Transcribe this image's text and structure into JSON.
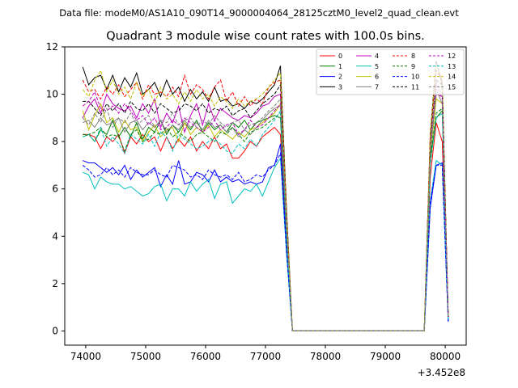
{
  "figure": {
    "suptitle": "Data file: modeM0/AS1A10_090T14_9000004064_28125cztM0_level2_quad_clean.evt",
    "title": "Quadrant 3 module wise count rates with 100.0s bins.",
    "offset_label": "+3.452e8"
  },
  "chart_data": {
    "type": "line",
    "title": "Quadrant 3 module wise count rates with 100.0s bins.",
    "xlabel": "",
    "ylabel": "",
    "x_offset": 345200000,
    "xlim": [
      73650,
      80350
    ],
    "ylim": [
      -0.6,
      12.0
    ],
    "xticks": [
      74000,
      75000,
      76000,
      77000,
      78000,
      79000,
      80000
    ],
    "yticks": [
      0,
      2,
      4,
      6,
      8,
      10,
      12
    ],
    "grid": false,
    "legend": {
      "placement": "top-right",
      "ncol": 4
    },
    "x": [
      73950,
      74050,
      74150,
      74250,
      74350,
      74450,
      74550,
      74650,
      74750,
      74850,
      74950,
      75050,
      75150,
      75250,
      75350,
      75450,
      75550,
      75650,
      75750,
      75850,
      75950,
      76050,
      76150,
      76250,
      76350,
      76450,
      76550,
      76650,
      76750,
      76850,
      76950,
      77050,
      77150,
      77250,
      77350,
      77450,
      77550,
      77650,
      77750,
      77850,
      77950,
      78050,
      78150,
      78250,
      78350,
      78450,
      78550,
      78650,
      78750,
      78850,
      78950,
      79050,
      79150,
      79250,
      79350,
      79450,
      79550,
      79650,
      79750,
      79850,
      79950,
      80050
    ],
    "series": [
      {
        "name": "0",
        "color": "#ff0000",
        "style": "solid",
        "values": [
          8.3,
          8.3,
          8.2,
          7.7,
          8.2,
          8.0,
          8.3,
          7.5,
          8.2,
          7.9,
          8.3,
          8.0,
          8.2,
          7.6,
          8.2,
          7.7,
          8.1,
          7.8,
          8.2,
          7.6,
          8.0,
          7.7,
          8.2,
          7.7,
          7.9,
          7.3,
          7.3,
          7.6,
          8.0,
          7.8,
          8.2,
          8.4,
          8.6,
          8.3,
          3.8,
          0.0,
          0.0,
          0.0,
          0.0,
          0.0,
          0.0,
          0.0,
          0.0,
          0.0,
          0.0,
          0.0,
          0.0,
          0.0,
          0.0,
          0.0,
          0.0,
          0.0,
          0.0,
          0.0,
          0.0,
          0.0,
          0.0,
          0.0,
          6.5,
          8.8,
          8.0,
          0.6
        ]
      },
      {
        "name": "1",
        "color": "#008000",
        "style": "solid",
        "values": [
          8.2,
          8.3,
          8.0,
          8.5,
          8.3,
          8.9,
          8.2,
          8.6,
          8.2,
          8.8,
          8.1,
          8.6,
          8.4,
          8.9,
          8.3,
          8.7,
          8.4,
          8.8,
          8.5,
          8.9,
          8.4,
          8.8,
          8.5,
          8.7,
          8.4,
          8.8,
          8.6,
          8.9,
          8.5,
          8.8,
          8.9,
          9.0,
          9.1,
          9.0,
          4.1,
          0.0,
          0.0,
          0.0,
          0.0,
          0.0,
          0.0,
          0.0,
          0.0,
          0.0,
          0.0,
          0.0,
          0.0,
          0.0,
          0.0,
          0.0,
          0.0,
          0.0,
          0.0,
          0.0,
          0.0,
          0.0,
          0.0,
          0.0,
          7.2,
          9.0,
          9.3,
          0.6
        ]
      },
      {
        "name": "2",
        "color": "#0000ff",
        "style": "solid",
        "values": [
          7.2,
          7.1,
          7.1,
          6.9,
          6.7,
          6.9,
          6.6,
          7.0,
          6.4,
          6.8,
          6.5,
          6.7,
          6.9,
          6.1,
          6.6,
          6.2,
          7.2,
          6.2,
          6.3,
          6.7,
          6.6,
          6.3,
          6.8,
          6.3,
          6.5,
          6.3,
          6.4,
          6.2,
          6.3,
          6.2,
          6.3,
          6.9,
          7.0,
          7.9,
          3.5,
          0.0,
          0.0,
          0.0,
          0.0,
          0.0,
          0.0,
          0.0,
          0.0,
          0.0,
          0.0,
          0.0,
          0.0,
          0.0,
          0.0,
          0.0,
          0.0,
          0.0,
          0.0,
          0.0,
          0.0,
          0.0,
          0.0,
          0.0,
          5.2,
          7.0,
          7.1,
          0.4
        ]
      },
      {
        "name": "3",
        "color": "#000000",
        "style": "solid",
        "values": [
          11.15,
          10.4,
          10.7,
          10.8,
          10.2,
          10.8,
          10.1,
          10.7,
          10.3,
          10.9,
          10.0,
          10.2,
          10.5,
          9.9,
          10.6,
          10.0,
          10.3,
          9.7,
          10.2,
          9.8,
          10.1,
          9.7,
          10.3,
          9.7,
          9.8,
          9.5,
          9.6,
          9.4,
          9.7,
          9.6,
          9.8,
          10.1,
          10.4,
          11.2,
          5.2,
          0.0,
          0.0,
          0.0,
          0.0,
          0.0,
          0.0,
          0.0,
          0.0,
          0.0,
          0.0,
          0.0,
          0.0,
          0.0,
          0.0,
          0.0,
          0.0,
          0.0,
          0.0,
          0.0,
          0.0,
          0.0,
          0.0,
          0.0,
          8.3,
          11.4,
          10.4,
          0.6
        ]
      },
      {
        "name": "4",
        "color": "#bf00bf",
        "style": "solid",
        "values": [
          9.0,
          9.5,
          9.8,
          9.2,
          10.0,
          9.6,
          9.4,
          9.3,
          9.5,
          9.0,
          9.6,
          9.2,
          9.8,
          8.6,
          9.2,
          8.8,
          9.5,
          8.4,
          9.1,
          9.6,
          8.7,
          9.6,
          8.9,
          9.4,
          9.2,
          9.0,
          8.9,
          9.1,
          9.0,
          9.2,
          9.5,
          9.6,
          9.9,
          10.0,
          4.6,
          0.0,
          0.0,
          0.0,
          0.0,
          0.0,
          0.0,
          0.0,
          0.0,
          0.0,
          0.0,
          0.0,
          0.0,
          0.0,
          0.0,
          0.0,
          0.0,
          0.0,
          0.0,
          0.0,
          0.0,
          0.0,
          0.0,
          0.0,
          7.5,
          10.0,
          9.9,
          0.6
        ]
      },
      {
        "name": "5",
        "color": "#00bfbf",
        "style": "solid",
        "values": [
          6.7,
          6.6,
          6.0,
          6.5,
          6.3,
          6.2,
          6.2,
          6.0,
          6.1,
          5.9,
          5.7,
          5.8,
          6.1,
          6.2,
          5.5,
          6.0,
          6.0,
          5.7,
          6.3,
          5.9,
          6.2,
          6.4,
          5.6,
          6.2,
          6.3,
          5.4,
          5.7,
          6.0,
          5.9,
          6.2,
          5.7,
          6.3,
          6.9,
          7.3,
          3.3,
          0.0,
          0.0,
          0.0,
          0.0,
          0.0,
          0.0,
          0.0,
          0.0,
          0.0,
          0.0,
          0.0,
          0.0,
          0.0,
          0.0,
          0.0,
          0.0,
          0.0,
          0.0,
          0.0,
          0.0,
          0.0,
          0.0,
          0.0,
          5.5,
          7.2,
          7.0,
          0.4
        ]
      },
      {
        "name": "6",
        "color": "#bfbf00",
        "style": "solid",
        "values": [
          9.3,
          8.5,
          9.1,
          9.6,
          8.8,
          9.0,
          8.4,
          8.9,
          8.5,
          8.6,
          8.0,
          8.4,
          8.7,
          8.2,
          8.5,
          8.6,
          8.0,
          8.8,
          8.3,
          8.6,
          8.4,
          8.7,
          8.2,
          8.5,
          8.3,
          8.1,
          8.4,
          8.2,
          8.5,
          8.6,
          8.8,
          9.0,
          9.2,
          9.6,
          4.4,
          0.0,
          0.0,
          0.0,
          0.0,
          0.0,
          0.0,
          0.0,
          0.0,
          0.0,
          0.0,
          0.0,
          0.0,
          0.0,
          0.0,
          0.0,
          0.0,
          0.0,
          0.0,
          0.0,
          0.0,
          0.0,
          0.0,
          0.0,
          7.4,
          9.8,
          9.6,
          0.6
        ]
      },
      {
        "name": "7",
        "color": "#808080",
        "style": "solid",
        "values": [
          8.8,
          8.9,
          8.6,
          9.0,
          8.7,
          8.8,
          9.0,
          8.4,
          8.8,
          8.9,
          8.5,
          8.8,
          8.6,
          8.9,
          8.4,
          8.7,
          8.5,
          8.9,
          8.6,
          8.8,
          8.5,
          8.9,
          8.6,
          8.7,
          8.4,
          8.6,
          8.2,
          8.5,
          8.3,
          8.6,
          8.9,
          9.2,
          9.4,
          9.5,
          4.4,
          0.0,
          0.0,
          0.0,
          0.0,
          0.0,
          0.0,
          0.0,
          0.0,
          0.0,
          0.0,
          0.0,
          0.0,
          0.0,
          0.0,
          0.0,
          0.0,
          0.0,
          0.0,
          0.0,
          0.0,
          0.0,
          0.0,
          0.0,
          7.5,
          10.2,
          9.6,
          0.6
        ]
      },
      {
        "name": "8",
        "color": "#ff0000",
        "style": "dashed",
        "values": [
          10.6,
          10.1,
          10.2,
          9.8,
          10.3,
          10.0,
          10.4,
          9.9,
          10.2,
          10.5,
          9.8,
          10.4,
          10.0,
          10.1,
          9.9,
          10.3,
          9.9,
          10.8,
          10.0,
          10.4,
          10.2,
          9.8,
          10.3,
          10.6,
          9.7,
          10.1,
          9.5,
          9.9,
          9.5,
          9.8,
          9.6,
          10.3,
          10.5,
          10.6,
          4.9,
          0.0,
          0.0,
          0.0,
          0.0,
          0.0,
          0.0,
          0.0,
          0.0,
          0.0,
          0.0,
          0.0,
          0.0,
          0.0,
          0.0,
          0.0,
          0.0,
          0.0,
          0.0,
          0.0,
          0.0,
          0.0,
          0.0,
          0.0,
          8.2,
          11.0,
          10.6,
          0.6
        ]
      },
      {
        "name": "9",
        "color": "#008000",
        "style": "dashed",
        "values": [
          8.3,
          8.3,
          8.4,
          8.6,
          8.2,
          8.3,
          8.2,
          7.6,
          8.3,
          8.5,
          8.0,
          8.1,
          8.4,
          8.3,
          8.6,
          8.2,
          8.4,
          8.2,
          8.0,
          8.3,
          8.4,
          8.2,
          8.0,
          8.4,
          8.3,
          8.6,
          8.3,
          8.0,
          8.4,
          8.5,
          8.6,
          8.8,
          9.0,
          9.2,
          4.2,
          0.0,
          0.0,
          0.0,
          0.0,
          0.0,
          0.0,
          0.0,
          0.0,
          0.0,
          0.0,
          0.0,
          0.0,
          0.0,
          0.0,
          0.0,
          0.0,
          0.0,
          0.0,
          0.0,
          0.0,
          0.0,
          0.0,
          0.0,
          7.3,
          9.2,
          9.4,
          0.6
        ]
      },
      {
        "name": "10",
        "color": "#0000ff",
        "style": "dashed",
        "values": [
          7.0,
          6.8,
          6.5,
          6.6,
          6.9,
          6.6,
          6.8,
          6.5,
          6.9,
          6.7,
          6.6,
          6.6,
          6.8,
          6.6,
          6.5,
          7.0,
          6.9,
          6.8,
          6.5,
          6.6,
          6.4,
          6.8,
          6.6,
          6.5,
          6.6,
          6.4,
          6.7,
          6.3,
          6.4,
          6.6,
          6.5,
          6.8,
          7.0,
          7.5,
          3.4,
          0.0,
          0.0,
          0.0,
          0.0,
          0.0,
          0.0,
          0.0,
          0.0,
          0.0,
          0.0,
          0.0,
          0.0,
          0.0,
          0.0,
          0.0,
          0.0,
          0.0,
          0.0,
          0.0,
          0.0,
          0.0,
          0.0,
          0.0,
          5.4,
          7.0,
          7.0,
          0.4
        ]
      },
      {
        "name": "11",
        "color": "#000000",
        "style": "dashed",
        "values": [
          9.7,
          9.7,
          9.4,
          9.1,
          9.6,
          9.3,
          9.6,
          9.2,
          9.7,
          9.4,
          9.3,
          9.6,
          9.2,
          9.6,
          9.4,
          9.2,
          9.3,
          9.6,
          9.5,
          9.3,
          9.6,
          9.2,
          9.4,
          9.3,
          9.5,
          9.1,
          9.3,
          9.4,
          9.0,
          9.3,
          9.6,
          9.8,
          10.0,
          10.4,
          4.8,
          0.0,
          0.0,
          0.0,
          0.0,
          0.0,
          0.0,
          0.0,
          0.0,
          0.0,
          0.0,
          0.0,
          0.0,
          0.0,
          0.0,
          0.0,
          0.0,
          0.0,
          0.0,
          0.0,
          0.0,
          0.0,
          0.0,
          0.0,
          8.0,
          10.6,
          10.4,
          0.6
        ]
      },
      {
        "name": "12",
        "color": "#bf00bf",
        "style": "dashed",
        "values": [
          9.5,
          9.7,
          10.1,
          9.4,
          9.3,
          9.5,
          9.2,
          9.6,
          9.3,
          8.9,
          9.1,
          8.7,
          9.0,
          8.5,
          8.6,
          8.9,
          8.7,
          9.0,
          8.8,
          8.6,
          8.4,
          8.6,
          8.9,
          8.5,
          8.7,
          8.8,
          8.3,
          8.5,
          8.9,
          8.6,
          8.7,
          9.0,
          9.3,
          9.6,
          4.4,
          0.0,
          0.0,
          0.0,
          0.0,
          0.0,
          0.0,
          0.0,
          0.0,
          0.0,
          0.0,
          0.0,
          0.0,
          0.0,
          0.0,
          0.0,
          0.0,
          0.0,
          0.0,
          0.0,
          0.0,
          0.0,
          0.0,
          0.0,
          7.8,
          10.4,
          9.8,
          0.6
        ]
      },
      {
        "name": "13",
        "color": "#00bfbf",
        "style": "dashed",
        "values": [
          8.2,
          8.3,
          8.0,
          8.6,
          7.8,
          8.2,
          7.9,
          7.5,
          8.3,
          8.1,
          7.9,
          8.3,
          7.8,
          8.4,
          8.2,
          7.6,
          8.3,
          8.1,
          7.9,
          7.7,
          7.8,
          8.0,
          8.1,
          7.9,
          7.6,
          7.5,
          7.9,
          7.7,
          8.1,
          7.8,
          8.3,
          8.6,
          8.9,
          9.3,
          4.1,
          0.0,
          0.0,
          0.0,
          0.0,
          0.0,
          0.0,
          0.0,
          0.0,
          0.0,
          0.0,
          0.0,
          0.0,
          0.0,
          0.0,
          0.0,
          0.0,
          0.0,
          0.0,
          0.0,
          0.0,
          0.0,
          0.0,
          0.0,
          7.0,
          9.0,
          9.2,
          0.5
        ]
      },
      {
        "name": "14",
        "color": "#bfbf00",
        "style": "dashed",
        "values": [
          10.2,
          9.9,
          10.6,
          11.0,
          10.1,
          10.6,
          10.0,
          10.3,
          9.8,
          10.5,
          9.9,
          10.2,
          9.6,
          10.3,
          9.8,
          10.0,
          9.6,
          10.1,
          9.7,
          10.2,
          9.8,
          10.0,
          9.5,
          9.9,
          9.7,
          9.4,
          9.8,
          9.5,
          9.7,
          9.8,
          10.0,
          10.3,
          10.6,
          10.9,
          5.0,
          0.0,
          0.0,
          0.0,
          0.0,
          0.0,
          0.0,
          0.0,
          0.0,
          0.0,
          0.0,
          0.0,
          0.0,
          0.0,
          0.0,
          0.0,
          0.0,
          0.0,
          0.0,
          0.0,
          0.0,
          0.0,
          0.0,
          0.0,
          8.3,
          11.3,
          10.6,
          0.6
        ]
      },
      {
        "name": "15",
        "color": "#808080",
        "style": "dashed",
        "values": [
          9.0,
          8.7,
          9.2,
          8.8,
          9.4,
          8.6,
          9.0,
          8.8,
          9.2,
          8.7,
          8.9,
          9.1,
          8.6,
          8.9,
          8.8,
          9.2,
          8.7,
          8.9,
          9.0,
          8.6,
          8.9,
          8.7,
          9.1,
          8.8,
          8.6,
          8.8,
          8.9,
          8.5,
          8.7,
          8.8,
          9.0,
          9.3,
          9.5,
          9.8,
          4.5,
          0.0,
          0.0,
          0.0,
          0.0,
          0.0,
          0.0,
          0.0,
          0.0,
          0.0,
          0.0,
          0.0,
          0.0,
          0.0,
          0.0,
          0.0,
          0.0,
          0.0,
          0.0,
          0.0,
          0.0,
          0.0,
          0.0,
          0.0,
          7.7,
          10.5,
          10.0,
          0.6
        ]
      }
    ]
  }
}
